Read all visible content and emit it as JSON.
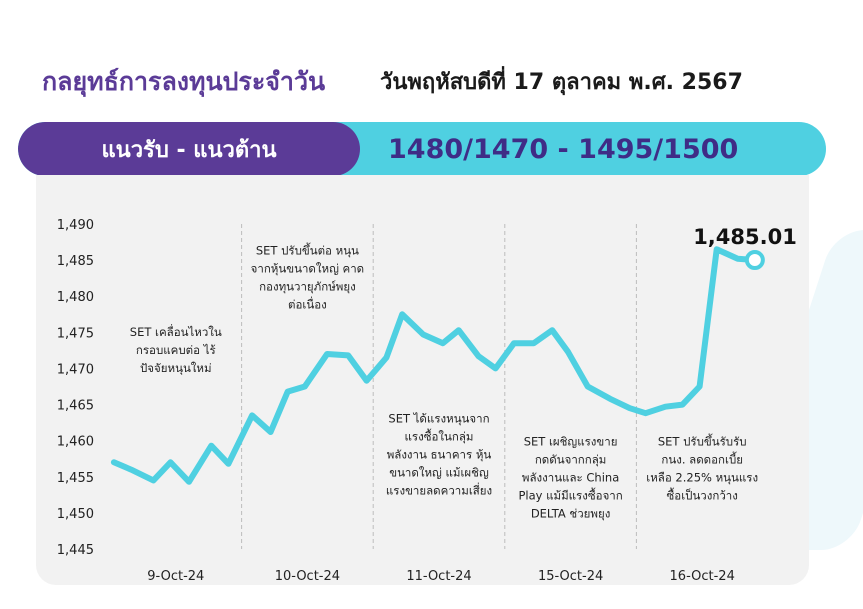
{
  "header": {
    "title_left": "กลยุทธ์การลงทุนประจำวัน",
    "title_right": "วันพฤหัสบดีที่ 17 ตุลาคม พ.ศ. 2567"
  },
  "band": {
    "label": "แนวรับ - แนวต้าน",
    "levels": "1480/1470 - 1495/1500"
  },
  "colors": {
    "purple": "#5b3b97",
    "cyan": "#4fd0e1",
    "panel": "#f2f2f2"
  },
  "chart_data": {
    "type": "line",
    "title": "",
    "xlabel": "",
    "ylabel": "",
    "ylim": [
      1445,
      1490
    ],
    "yticks": [
      "1,445",
      "1,450",
      "1,455",
      "1,460",
      "1,465",
      "1,470",
      "1,475",
      "1,480",
      "1,485",
      "1,490"
    ],
    "grid": false,
    "categories": [
      "9-Oct-24",
      "10-Oct-24",
      "11-Oct-24",
      "15-Oct-24",
      "16-Oct-24"
    ],
    "x_range": [
      0,
      5
    ],
    "series": [
      {
        "color": "#4fd0e1",
        "points": [
          [
            0.03,
            1457.0
          ],
          [
            0.16,
            1456.0
          ],
          [
            0.33,
            1454.5
          ],
          [
            0.46,
            1457.0
          ],
          [
            0.6,
            1454.3
          ],
          [
            0.77,
            1459.3
          ],
          [
            0.9,
            1456.8
          ],
          [
            1.08,
            1463.5
          ],
          [
            1.22,
            1461.2
          ],
          [
            1.35,
            1466.8
          ],
          [
            1.48,
            1467.5
          ],
          [
            1.65,
            1472.0
          ],
          [
            1.81,
            1471.8
          ],
          [
            1.95,
            1468.3
          ],
          [
            2.1,
            1471.5
          ],
          [
            2.22,
            1477.5
          ],
          [
            2.38,
            1474.7
          ],
          [
            2.53,
            1473.5
          ],
          [
            2.65,
            1475.3
          ],
          [
            2.8,
            1471.7
          ],
          [
            2.93,
            1470.0
          ],
          [
            3.07,
            1473.5
          ],
          [
            3.22,
            1473.5
          ],
          [
            3.36,
            1475.3
          ],
          [
            3.48,
            1472.3
          ],
          [
            3.63,
            1467.5
          ],
          [
            3.8,
            1465.8
          ],
          [
            3.95,
            1464.5
          ],
          [
            4.07,
            1463.8
          ],
          [
            4.22,
            1464.7
          ],
          [
            4.35,
            1465.0
          ],
          [
            4.48,
            1467.5
          ],
          [
            4.61,
            1486.5
          ],
          [
            4.77,
            1485.2
          ],
          [
            4.9,
            1485.01
          ]
        ]
      }
    ],
    "last_value_label": "1,485.01",
    "annotations": [
      {
        "col": 0,
        "y": 1474.5,
        "lines": [
          "SET เคลื่อนไหวใน",
          "กรอบแคบต่อ ไร้",
          "ปัจจัยหนุนใหม่"
        ]
      },
      {
        "col": 1,
        "y": 1485.8,
        "lines": [
          "SET ปรับขึ้นต่อ หนุน",
          "จากหุ้นขนาดใหญ่ คาด",
          "กองทุนวายุภักษ์พยุง",
          "ต่อเนื่อง"
        ]
      },
      {
        "col": 2,
        "y": 1462.5,
        "lines": [
          "SET ได้แรงหนุนจาก",
          "แรงซื้อในกลุ่ม",
          "พลังงาน ธนาคาร หุ้น",
          "ขนาดใหญ่ แม้เผชิญ",
          "แรงขายลดความเสี่ยง"
        ]
      },
      {
        "col": 3,
        "y": 1459.3,
        "lines": [
          "SET เผชิญแรงขาย",
          "กดดันจากกลุ่ม",
          "พลังงานและ China",
          "Play แม้มีแรงซื้อจาก",
          "DELTA ช่วยพยุง"
        ]
      },
      {
        "col": 4,
        "y": 1459.3,
        "lines": [
          "SET ปรับขึ้นรับรับ",
          "กนง. ลดดอกเบี้ย",
          "เหลือ 2.25% หนุนแรง",
          "ซื้อเป็นวงกว้าง"
        ]
      }
    ]
  }
}
